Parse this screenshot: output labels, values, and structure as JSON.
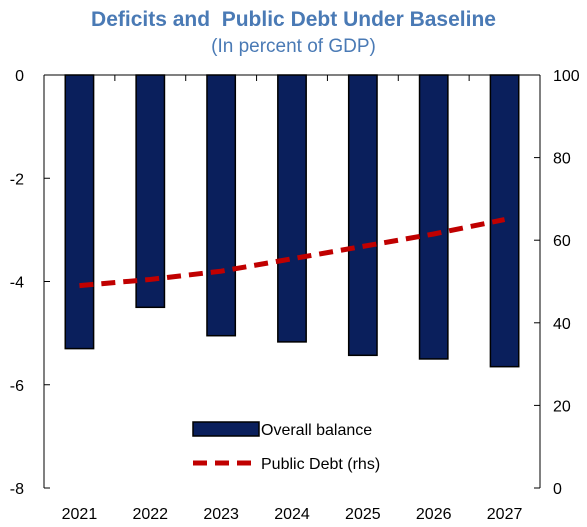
{
  "chart_data": {
    "type": "bar",
    "title": "Deficits and  Public Debt Under Baseline",
    "subtitle": "(In percent of GDP)",
    "title_color": "#4a7ab5",
    "categories": [
      "2021",
      "2022",
      "2023",
      "2024",
      "2025",
      "2026",
      "2027"
    ],
    "series": [
      {
        "name": "Overall balance",
        "type": "bar",
        "axis": "left",
        "color": "#0a1f5c",
        "values": [
          -5.3,
          -4.5,
          -5.05,
          -5.17,
          -5.43,
          -5.5,
          -5.65
        ]
      },
      {
        "name": "Public Debt (rhs)",
        "type": "line",
        "style": "dashed",
        "axis": "right",
        "color": "#c00000",
        "values": [
          49,
          50.5,
          52.5,
          55.5,
          58.5,
          61.5,
          65
        ]
      }
    ],
    "y_left": {
      "min": -8,
      "max": 0,
      "ticks": [
        0,
        -2,
        -4,
        -6,
        -8
      ]
    },
    "y_right": {
      "min": 0,
      "max": 100,
      "ticks": [
        100,
        80,
        60,
        40,
        20,
        0
      ]
    },
    "grid": false,
    "legend_position": "bottom-center"
  }
}
